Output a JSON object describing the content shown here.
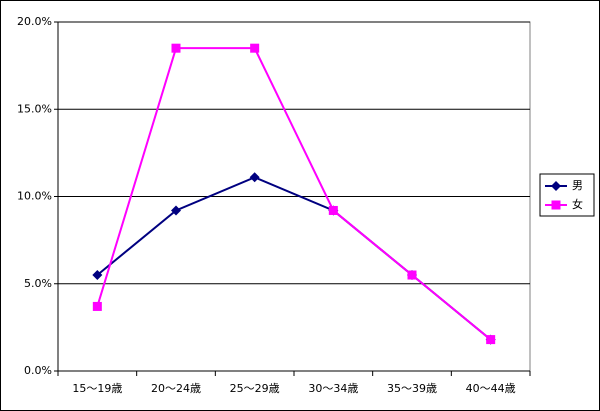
{
  "chart_data": {
    "type": "line",
    "categories": [
      "15〜19歳",
      "20〜24歳",
      "25〜29歳",
      "30〜34歳",
      "35〜39歳",
      "40〜44歳"
    ],
    "series": [
      {
        "name": "男",
        "color": "#000080",
        "marker": "diamond",
        "values": [
          5.5,
          9.2,
          11.1,
          9.2,
          5.5,
          1.8
        ]
      },
      {
        "name": "女",
        "color": "#ff00ff",
        "marker": "square",
        "values": [
          3.7,
          18.5,
          18.5,
          9.2,
          5.5,
          1.8
        ]
      }
    ],
    "ylim": [
      0,
      20
    ],
    "yticks": [
      {
        "value": 0,
        "label": "0.0%"
      },
      {
        "value": 5,
        "label": "5.0%"
      },
      {
        "value": 10,
        "label": "10.0%"
      },
      {
        "value": 15,
        "label": "15.0%"
      },
      {
        "value": 20,
        "label": "20.0%"
      }
    ],
    "grid": true,
    "legend": "right"
  }
}
